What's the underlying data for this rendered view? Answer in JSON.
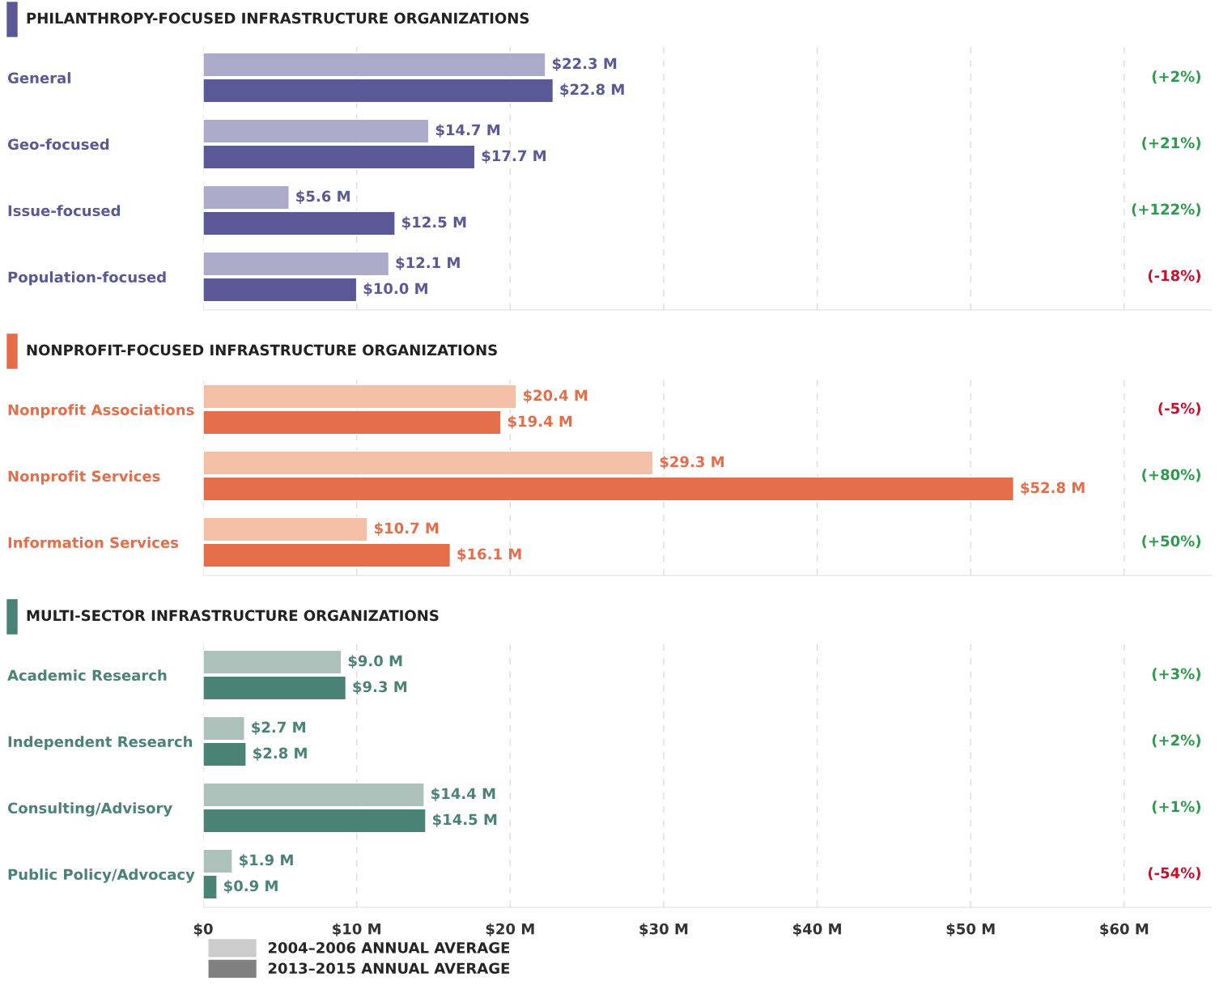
{
  "chart_data": [
    {
      "type": "bar",
      "orientation": "horizontal",
      "title": "PHILANTHROPY-FOCUSED INFRASTRUCTURE ORGANIZATIONS",
      "categories": [
        "General",
        "Geo-focused",
        "Issue-focused",
        "Population-focused"
      ],
      "series": [
        {
          "color": "#aeaac9",
          "values": [
            22.3,
            14.7,
            5.6,
            12.1
          ],
          "value_labels": [
            "$22.3 M",
            "$14.7 M",
            "$5.6 M",
            "$12.1 M"
          ]
        },
        {
          "color": "#5a5896",
          "values": [
            22.8,
            17.7,
            12.5,
            10.0
          ],
          "value_labels": [
            "$22.8 M",
            "$17.7 M",
            "$12.5 M",
            "$10.0 M"
          ]
        }
      ],
      "annotations": [
        "(+2%)",
        "(+21%)",
        "(+122%)",
        "(-18%)"
      ],
      "xlim": [
        0,
        65.7
      ],
      "xticks": [
        0,
        10,
        20,
        30,
        40,
        50,
        60
      ],
      "grid": "x",
      "tick_labels": "y"
    },
    {
      "type": "bar",
      "orientation": "horizontal",
      "title": "NONPROFIT-FOCUSED INFRASTRUCTURE ORGANIZATIONS",
      "categories": [
        "Nonprofit Associations",
        "Nonprofit Services",
        "Information Services"
      ],
      "series": [
        {
          "color": "#f3c0a7",
          "values": [
            20.4,
            29.3,
            10.7
          ],
          "value_labels": [
            "$20.4 M",
            "$29.3 M",
            "$10.7 M"
          ]
        },
        {
          "color": "#e46d4a",
          "values": [
            19.4,
            52.8,
            16.1
          ],
          "value_labels": [
            "$19.4 M",
            "$52.8 M",
            "$16.1 M"
          ]
        }
      ],
      "annotations": [
        "(-5%)",
        "(+80%)",
        "(+50%)"
      ],
      "xlim": [
        0,
        65.7
      ],
      "xticks": [
        0,
        10,
        20,
        30,
        40,
        50,
        60
      ],
      "grid": "x",
      "tick_labels": "y"
    },
    {
      "type": "bar",
      "orientation": "horizontal",
      "title": "MULTI-SECTOR INFRASTRUCTURE ORGANIZATIONS",
      "categories": [
        "Academic Research",
        "Independent Research",
        "Consulting/Advisory",
        "Public Policy/Advocacy"
      ],
      "series": [
        {
          "name": "2004–2006 ANNUAL AVERAGE",
          "color": "#cccccc",
          "colors": [
            "#aec0ba",
            "#aec0ba",
            "#aec0ba",
            "#aec0ba"
          ],
          "values": [
            9.0,
            2.7,
            14.4,
            1.9
          ],
          "value_labels": [
            "$9.0 M",
            "$2.7 M",
            "$14.4 M",
            "$1.9 M"
          ]
        },
        {
          "name": "2013–2015 ANNUAL AVERAGE",
          "color": "#808080",
          "colors": [
            "#4a8275",
            "#4a8275",
            "#4a8275",
            "#4a8275"
          ],
          "values": [
            9.3,
            2.8,
            14.5,
            0.9
          ],
          "value_labels": [
            "$9.3 M",
            "$2.8 M",
            "$14.5 M",
            "$0.9 M"
          ]
        }
      ],
      "annotations": [
        "(+3%)",
        "(+2%)",
        "(+1%)",
        "(-54%)"
      ],
      "xlim": [
        0,
        65.7
      ],
      "xticks": [
        {
          "value": 0,
          "label": "$0"
        },
        {
          "value": 10,
          "label": "$10 M"
        },
        {
          "value": 20,
          "label": "$20 M"
        },
        {
          "value": 30,
          "label": "$30 M"
        },
        {
          "value": 40,
          "label": "$40 M"
        },
        {
          "value": 50,
          "label": "$50 M"
        },
        {
          "value": 60,
          "label": "$60 M"
        }
      ],
      "grid": "x",
      "legend": "bottom left"
    }
  ]
}
